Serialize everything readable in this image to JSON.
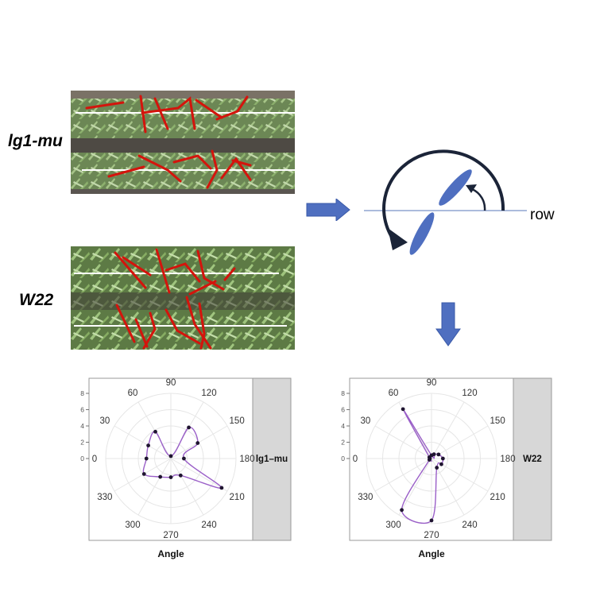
{
  "labels": {
    "genotype_top": "lg1-mu",
    "genotype_bottom": "W22",
    "row": "row"
  },
  "colors": {
    "trace": "#d4140c",
    "rowline": "#ffffff",
    "polar_line": "#9a5fc8",
    "point": "#1f1430",
    "arrow_fill": "#4f6fc0",
    "leaf": "#4f6fc0",
    "strip": "#d7d7d7"
  },
  "icons": [
    "arrow-right-icon",
    "arrow-down-icon",
    "leaf-angle-icon",
    "rotation-arc-icon"
  ],
  "chart_data": [
    {
      "type": "polar-line",
      "panel_label": "lg1–mu",
      "xlabel": "Angle",
      "angle_labels": [
        "0",
        "30",
        "60",
        "90",
        "120",
        "150",
        "180",
        "210",
        "240",
        "270",
        "300",
        "330"
      ],
      "r_ticks": [
        "0",
        "2",
        "4",
        "6",
        "8"
      ],
      "rlim": [
        0,
        8
      ],
      "points": [
        {
          "angle": 0,
          "r": 3.0
        },
        {
          "angle": 30,
          "r": 3.2
        },
        {
          "angle": 60,
          "r": 3.8
        },
        {
          "angle": 90,
          "r": 0.3
        },
        {
          "angle": 120,
          "r": 4.4
        },
        {
          "angle": 150,
          "r": 3.8
        },
        {
          "angle": 180,
          "r": 1.6
        },
        {
          "angle": 210,
          "r": 7.2
        },
        {
          "angle": 240,
          "r": 2.4
        },
        {
          "angle": 270,
          "r": 2.3
        },
        {
          "angle": 300,
          "r": 2.6
        },
        {
          "angle": 330,
          "r": 3.8
        }
      ]
    },
    {
      "type": "polar-line",
      "panel_label": "W22",
      "xlabel": "Angle",
      "angle_labels": [
        "0",
        "30",
        "60",
        "90",
        "120",
        "150",
        "180",
        "210",
        "240",
        "270",
        "300",
        "330"
      ],
      "r_ticks": [
        "0",
        "2",
        "4",
        "6",
        "8"
      ],
      "rlim": [
        0,
        8
      ],
      "points": [
        {
          "angle": 0,
          "r": 0.2
        },
        {
          "angle": 30,
          "r": 0.3
        },
        {
          "angle": 60,
          "r": 7.0
        },
        {
          "angle": 90,
          "r": 0.4
        },
        {
          "angle": 120,
          "r": 0.6
        },
        {
          "angle": 150,
          "r": 1.0
        },
        {
          "angle": 180,
          "r": 1.4
        },
        {
          "angle": 210,
          "r": 1.4
        },
        {
          "angle": 240,
          "r": 1.3
        },
        {
          "angle": 270,
          "r": 7.6
        },
        {
          "angle": 300,
          "r": 7.3
        },
        {
          "angle": 330,
          "r": 0.3
        }
      ]
    }
  ]
}
